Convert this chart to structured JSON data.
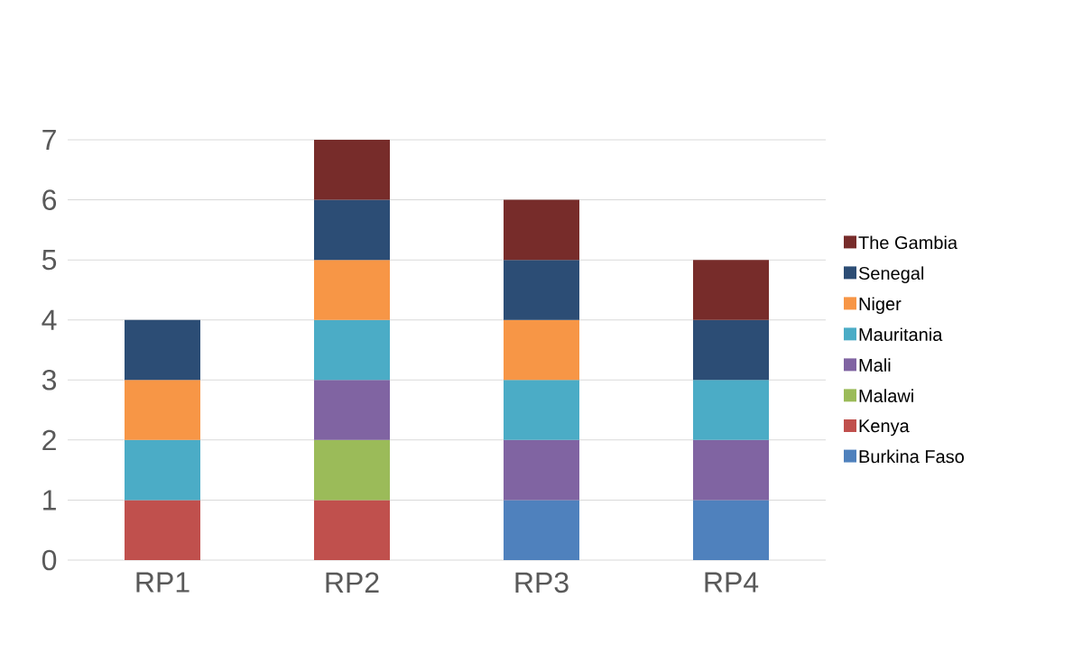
{
  "chart_data": {
    "type": "bar",
    "stacked": true,
    "categories": [
      "RP1",
      "RP2",
      "RP3",
      "RP4"
    ],
    "series": [
      {
        "name": "Burkina Faso",
        "color": "#4f81bd",
        "values": [
          null,
          null,
          1,
          1
        ]
      },
      {
        "name": "Kenya",
        "color": "#c0504d",
        "values": [
          1,
          1,
          null,
          null
        ]
      },
      {
        "name": "Malawi",
        "color": "#9bbb59",
        "values": [
          null,
          1,
          null,
          null
        ]
      },
      {
        "name": "Mali",
        "color": "#8064a2",
        "values": [
          null,
          1,
          1,
          1
        ]
      },
      {
        "name": "Mauritania",
        "color": "#4bacc6",
        "values": [
          1,
          1,
          1,
          1
        ]
      },
      {
        "name": "Niger",
        "color": "#f79646",
        "values": [
          1,
          1,
          1,
          null
        ]
      },
      {
        "name": "Senegal",
        "color": "#2c4d75",
        "values": [
          1,
          1,
          1,
          1
        ]
      },
      {
        "name": "The Gambia",
        "color": "#772c2a",
        "values": [
          null,
          1,
          1,
          1
        ]
      }
    ],
    "ylim": [
      0,
      7
    ],
    "yticks": [
      0,
      1,
      2,
      3,
      4,
      5,
      6,
      7
    ],
    "grid": "y",
    "legend": "right"
  }
}
